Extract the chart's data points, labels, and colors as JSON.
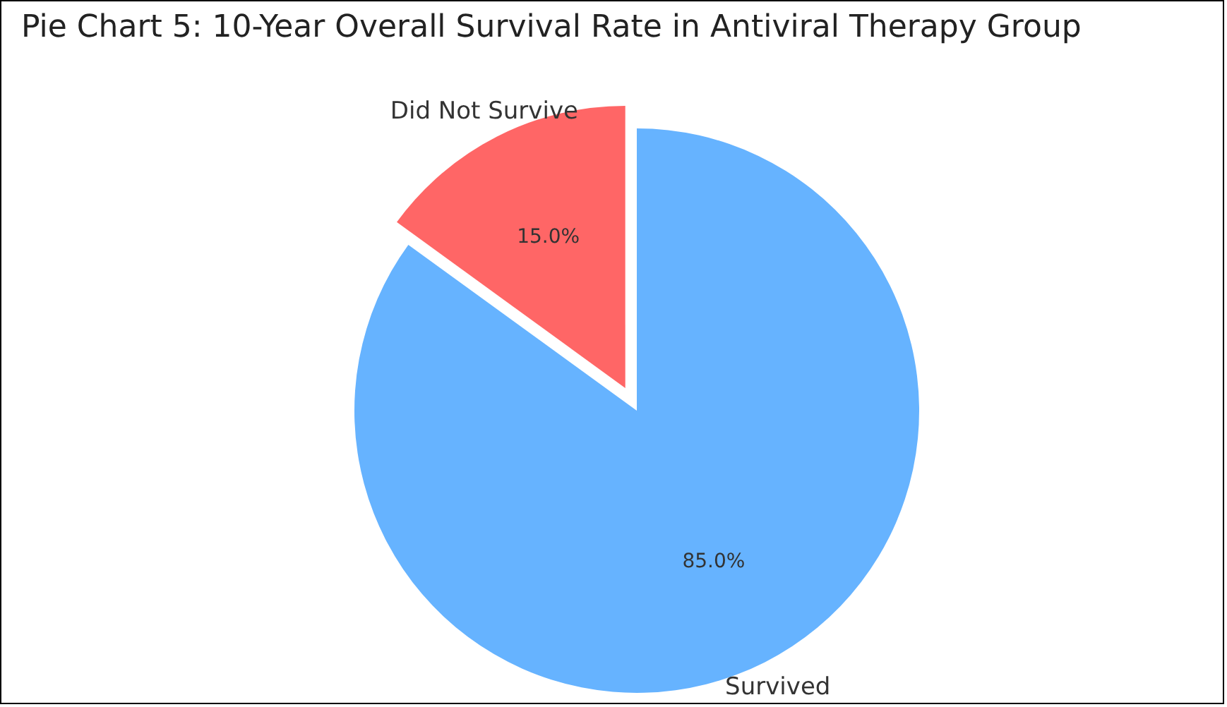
{
  "chart_data": {
    "type": "pie",
    "title": "Pie Chart 5: 10-Year Overall Survival Rate in Antiviral Therapy Group",
    "categories": [
      "Survived",
      "Did Not Survive"
    ],
    "values": [
      85,
      15
    ],
    "colors": [
      "#66b3ff",
      "#ff6666"
    ],
    "value_labels": [
      "85.0%",
      "15.0%"
    ]
  }
}
